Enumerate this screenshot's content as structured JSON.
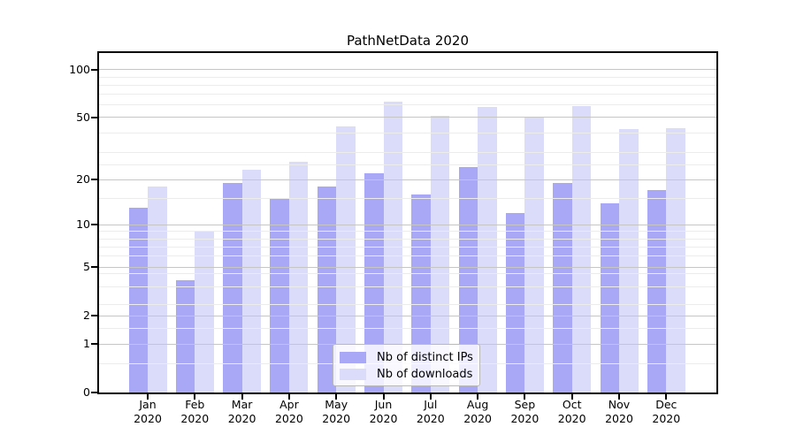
{
  "title": "PathNetData 2020",
  "chart_data": {
    "type": "bar",
    "title": "PathNetData 2020",
    "categories": [
      "Jan",
      "Feb",
      "Mar",
      "Apr",
      "May",
      "Jun",
      "Jul",
      "Aug",
      "Sep",
      "Oct",
      "Nov",
      "Dec"
    ],
    "category_year": "2020",
    "series": [
      {
        "name": "Nb of distinct IPs",
        "color": "#a8a8f7",
        "values": [
          13,
          4,
          19,
          15,
          18,
          22,
          16,
          24,
          12,
          19,
          14,
          17
        ]
      },
      {
        "name": "Nb of downloads",
        "color": "#dbdbfa",
        "values": [
          18,
          9,
          23,
          26,
          44,
          63,
          51,
          58,
          50,
          59,
          42,
          43
        ]
      }
    ],
    "xlabel": "",
    "ylabel": "",
    "yscale": "log1p",
    "ylim": [
      0,
      127
    ],
    "yticks": [
      0,
      1,
      2,
      5,
      10,
      20,
      50,
      100
    ],
    "yticks_minor": [
      0.5,
      1.5,
      2.5,
      3.5,
      4.5,
      6,
      7,
      8,
      9,
      15,
      25,
      30,
      40,
      60,
      70,
      80,
      90
    ],
    "grid": true,
    "legend_position": "lower center",
    "colors": {
      "axis": "#000000",
      "gridline_major": "#c6c6c6",
      "gridline_minor": "#ececec",
      "background": "#ffffff"
    }
  }
}
